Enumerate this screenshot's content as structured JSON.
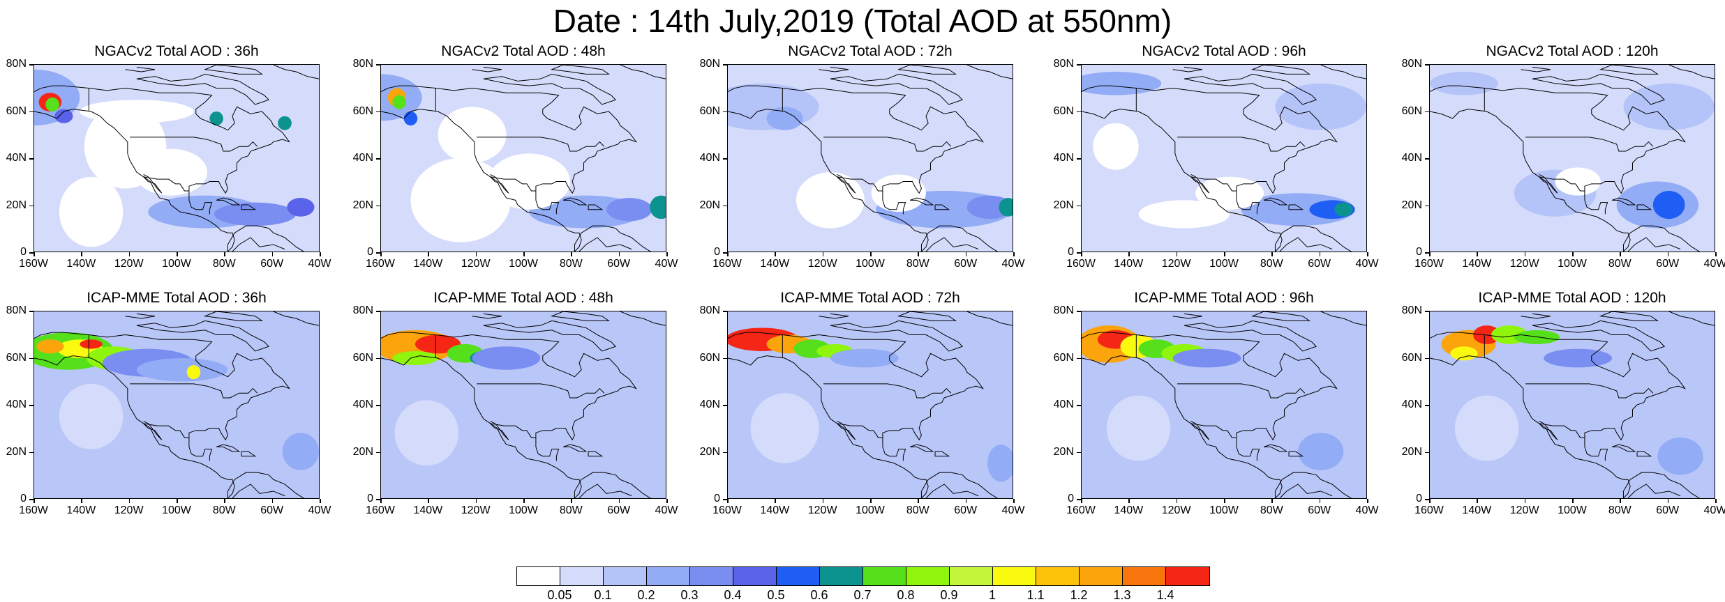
{
  "title": "Date : 14th July,2019 (Total AOD at 550nm)",
  "lat_labels": [
    "80N",
    "60N",
    "40N",
    "20N",
    "0"
  ],
  "lon_labels": [
    "160W",
    "140W",
    "120W",
    "100W",
    "80W",
    "60W",
    "40W"
  ],
  "panels": [
    {
      "title": "NGACv2 Total AOD : 36h",
      "model": "NGACv2",
      "lead_time": "36h"
    },
    {
      "title": "NGACv2 Total AOD : 48h",
      "model": "NGACv2",
      "lead_time": "48h"
    },
    {
      "title": "NGACv2 Total AOD : 72h",
      "model": "NGACv2",
      "lead_time": "72h"
    },
    {
      "title": "NGACv2 Total AOD : 96h",
      "model": "NGACv2",
      "lead_time": "96h"
    },
    {
      "title": "NGACv2 Total AOD : 120h",
      "model": "NGACv2",
      "lead_time": "120h"
    },
    {
      "title": "ICAP-MME Total AOD : 36h",
      "model": "ICAP-MME",
      "lead_time": "36h"
    },
    {
      "title": "ICAP-MME Total AOD : 48h",
      "model": "ICAP-MME",
      "lead_time": "48h"
    },
    {
      "title": "ICAP-MME Total AOD : 72h",
      "model": "ICAP-MME",
      "lead_time": "72h"
    },
    {
      "title": "ICAP-MME Total AOD : 96h",
      "model": "ICAP-MME",
      "lead_time": "96h"
    },
    {
      "title": "ICAP-MME Total AOD : 120h",
      "model": "ICAP-MME",
      "lead_time": "120h"
    }
  ],
  "colorbar": {
    "labels": [
      "0.05",
      "0.1",
      "0.2",
      "0.3",
      "0.4",
      "0.5",
      "0.6",
      "0.7",
      "0.8",
      "0.9",
      "1",
      "1.1",
      "1.2",
      "1.3",
      "1.4"
    ],
    "colors": [
      "#ffffff",
      "#d5dcfb",
      "#b4c3f8",
      "#93acf6",
      "#7a8ef2",
      "#5b62ea",
      "#1f5ef5",
      "#0c9390",
      "#55e01b",
      "#8ff50d",
      "#c5f53a",
      "#fafa10",
      "#fdc20a",
      "#fca40c",
      "#f7750c",
      "#f52615"
    ]
  }
}
